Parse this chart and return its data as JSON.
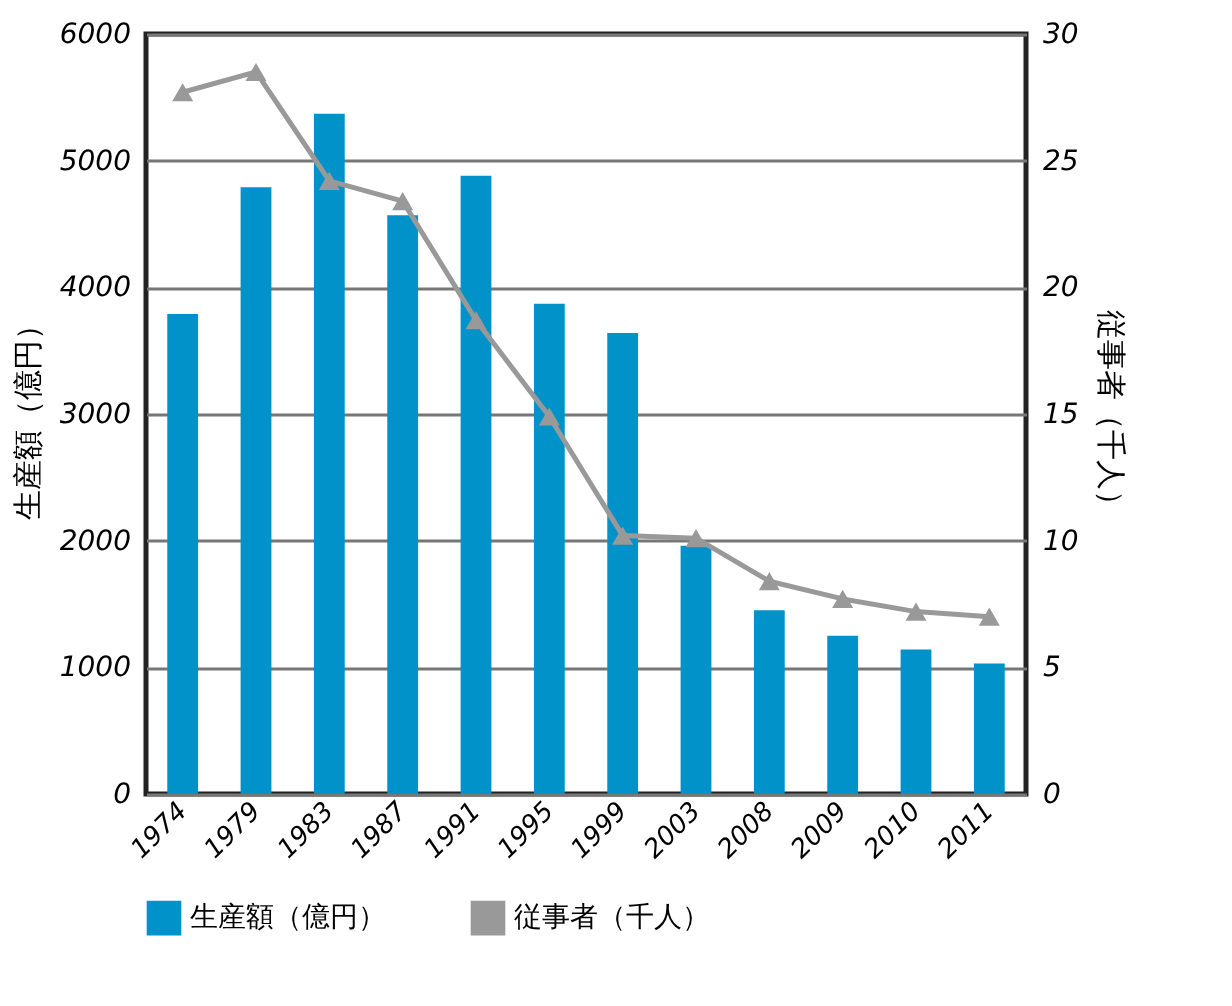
{
  "chart_data": {
    "type": "bar",
    "categories": [
      "1974",
      "1979",
      "1983",
      "1987",
      "1991",
      "1995",
      "1999",
      "2003",
      "2008",
      "2009",
      "2010",
      "2011"
    ],
    "series": [
      {
        "name": "生産額（億円）",
        "color": "#0092c8",
        "values": [
          3790,
          4790,
          5370,
          4570,
          4880,
          3870,
          3640,
          1960,
          1450,
          1250,
          1140,
          1030
        ]
      },
      {
        "name": "従事者（千人）",
        "type": "line",
        "axis": "y2",
        "color": "#999999",
        "values": [
          27.7,
          28.5,
          24.2,
          23.4,
          18.7,
          14.9,
          10.2,
          10.1,
          8.4,
          7.7,
          7.2,
          7.0
        ]
      }
    ],
    "ylabel": "生産額（億円）",
    "y2label": "従事者（千人）",
    "ylim": [
      0,
      6000
    ],
    "yticks": [
      0,
      1000,
      2000,
      3000,
      4000,
      5000,
      6000
    ],
    "y2lim": [
      0,
      30
    ],
    "y2ticks": [
      0,
      5,
      10,
      15,
      20,
      25,
      30
    ],
    "grid": "y",
    "legend": "bottom",
    "marker": "triangle",
    "line_style": "solid"
  }
}
